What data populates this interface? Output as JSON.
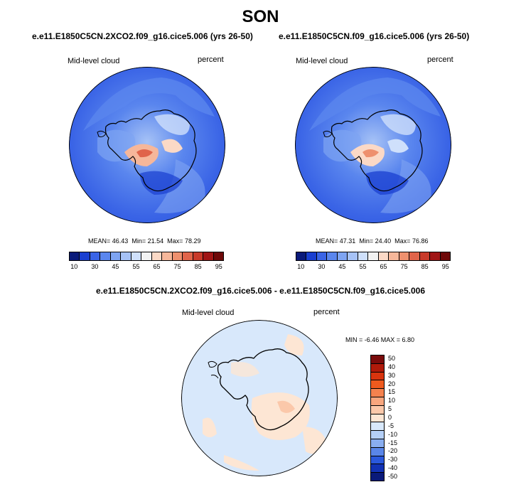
{
  "season": "SON",
  "panels": [
    {
      "case_title": "e.e11.E1850C5CN.2XCO2.f09_g16.cice5.006 (yrs 26-50)",
      "variable": "Mid-level cloud",
      "units": "percent",
      "mean_label": "MEAN=",
      "mean": "46.43",
      "min_label": "Min=",
      "min": "21.54",
      "max_label": "Max=",
      "max": "78.29"
    },
    {
      "case_title": "e.e11.E1850C5CN.f09_g16.cice5.006 (yrs 26-50)",
      "variable": "Mid-level cloud",
      "units": "percent",
      "mean_label": "MEAN=",
      "mean": "47.31",
      "min_label": "Min=",
      "min": "24.40",
      "max_label": "Max=",
      "max": "76.86"
    }
  ],
  "colorbar": {
    "labels": [
      "10",
      "30",
      "45",
      "55",
      "65",
      "75",
      "85",
      "95"
    ],
    "colors": [
      "#0a1a7a",
      "#1a3fd0",
      "#3a64e6",
      "#5a86ee",
      "#7ea4f2",
      "#a6c2f6",
      "#cfe0fb",
      "#f2f2f2",
      "#fbd9c6",
      "#f6b79a",
      "#ee906e",
      "#e0644a",
      "#c83a2a",
      "#a01515",
      "#6e0808"
    ]
  },
  "diff": {
    "title": "e.e11.E1850C5CN.2XCO2.f09_g16.cice5.006 - e.e11.E1850C5CN.f09_g16.cice5.006",
    "variable": "Mid-level cloud",
    "units": "percent",
    "minmax": "MIN = -6.46 MAX = 6.80",
    "colorbar_labels": [
      "50",
      "40",
      "30",
      "20",
      "15",
      "10",
      "5",
      "0",
      "-5",
      "-10",
      "-15",
      "-20",
      "-30",
      "-40",
      "-50"
    ],
    "colorbar_colors": [
      "#7a0b0b",
      "#b01a0a",
      "#d8340e",
      "#ee5a1e",
      "#f5824e",
      "#f8a67e",
      "#fbc8aa",
      "#fde6d4",
      "#d8e8fb",
      "#b4cff6",
      "#8aaef0",
      "#5a86e8",
      "#2a58dc",
      "#1232b4",
      "#0a1a7a"
    ]
  }
}
